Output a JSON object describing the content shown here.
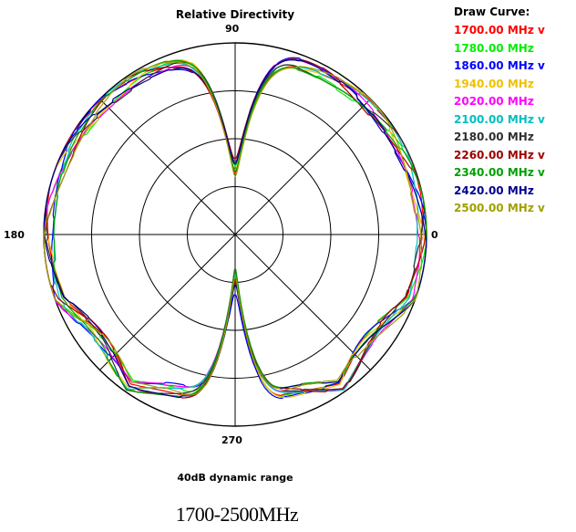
{
  "chart_data": {
    "type": "polar",
    "title": "Relative Directivity",
    "angle_labels": {
      "a90": "90",
      "a180": "180",
      "a0": "0",
      "a270": "270"
    },
    "grid": true,
    "range_note": "40dB dynamic range",
    "band_label": "1700-2500MHz",
    "legend_title": "Draw Curve:",
    "legend_position": "top-right",
    "series": [
      {
        "label": "1700.00 MHz v",
        "color": "#ff0000",
        "dip_top": 0.32,
        "dip_bot": 0.22
      },
      {
        "label": "1780.00 MHz",
        "color": "#00ee00",
        "dip_top": 0.3,
        "dip_bot": 0.18
      },
      {
        "label": "1860.00 MHz v",
        "color": "#0000ff",
        "dip_top": 0.36,
        "dip_bot": 0.3
      },
      {
        "label": "1940.00 MHz",
        "color": "#f0c000",
        "dip_top": 0.3,
        "dip_bot": 0.2
      },
      {
        "label": "2020.00 MHz",
        "color": "#ff00ff",
        "dip_top": 0.33,
        "dip_bot": 0.21
      },
      {
        "label": "2100.00 MHz v",
        "color": "#00c0c0",
        "dip_top": 0.38,
        "dip_bot": 0.24
      },
      {
        "label": "2180.00 MHz",
        "color": "#303030",
        "dip_top": 0.31,
        "dip_bot": 0.19
      },
      {
        "label": "2260.00 MHz v",
        "color": "#a00000",
        "dip_top": 0.4,
        "dip_bot": 0.26
      },
      {
        "label": "2340.00 MHz v",
        "color": "#00a000",
        "dip_top": 0.29,
        "dip_bot": 0.17
      },
      {
        "label": "2420.00 MHz",
        "color": "#000090",
        "dip_top": 0.33,
        "dip_bot": 0.25
      },
      {
        "label": "2500.00 MHz v",
        "color": "#a0a000",
        "dip_top": 0.3,
        "dip_bot": 0.19
      }
    ]
  }
}
